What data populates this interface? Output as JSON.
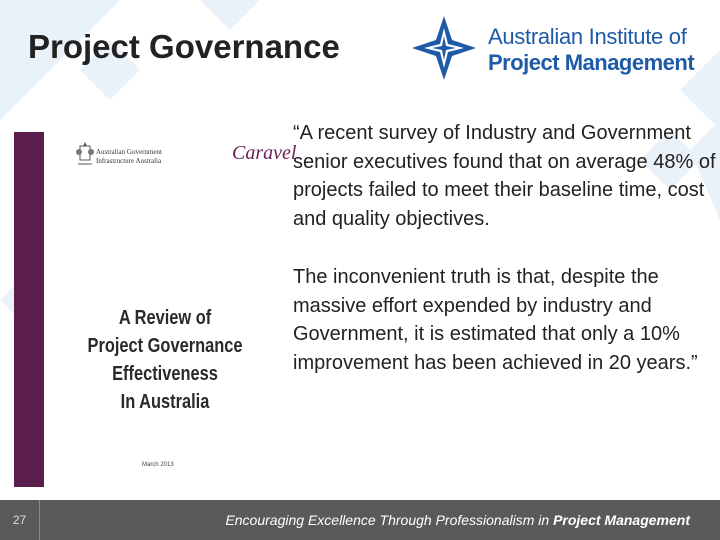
{
  "slide": {
    "title": "Project Governance",
    "page_number": "27"
  },
  "logo": {
    "line1": "Australian Institute of",
    "line2": "Project Management",
    "brand_color": "#1e5aa8",
    "icon": "compass-star-icon"
  },
  "report": {
    "gov_line1": "Australian Government",
    "gov_line2": "Infrastructure Australia",
    "caravel": "Caravel",
    "title_lines": [
      "A Review of",
      "Project Governance",
      "Effectiveness",
      "In Australia"
    ],
    "date": "March 2013",
    "accent_color": "#5c1e4c"
  },
  "quote": {
    "para1": "“A recent survey of Industry and Government senior executives found that on average 48% of projects failed to meet their baseline time, cost and quality objectives.",
    "para2": "The inconvenient truth is that, despite the massive effort expended by industry and Government, it is estimated that only a 10% improvement has been achieved in 20 years.”"
  },
  "footer": {
    "tagline_prefix": "Encouraging Excellence Through Professionalism in ",
    "tagline_bold": "Project Management",
    "bg_color": "#5a5a5a"
  }
}
